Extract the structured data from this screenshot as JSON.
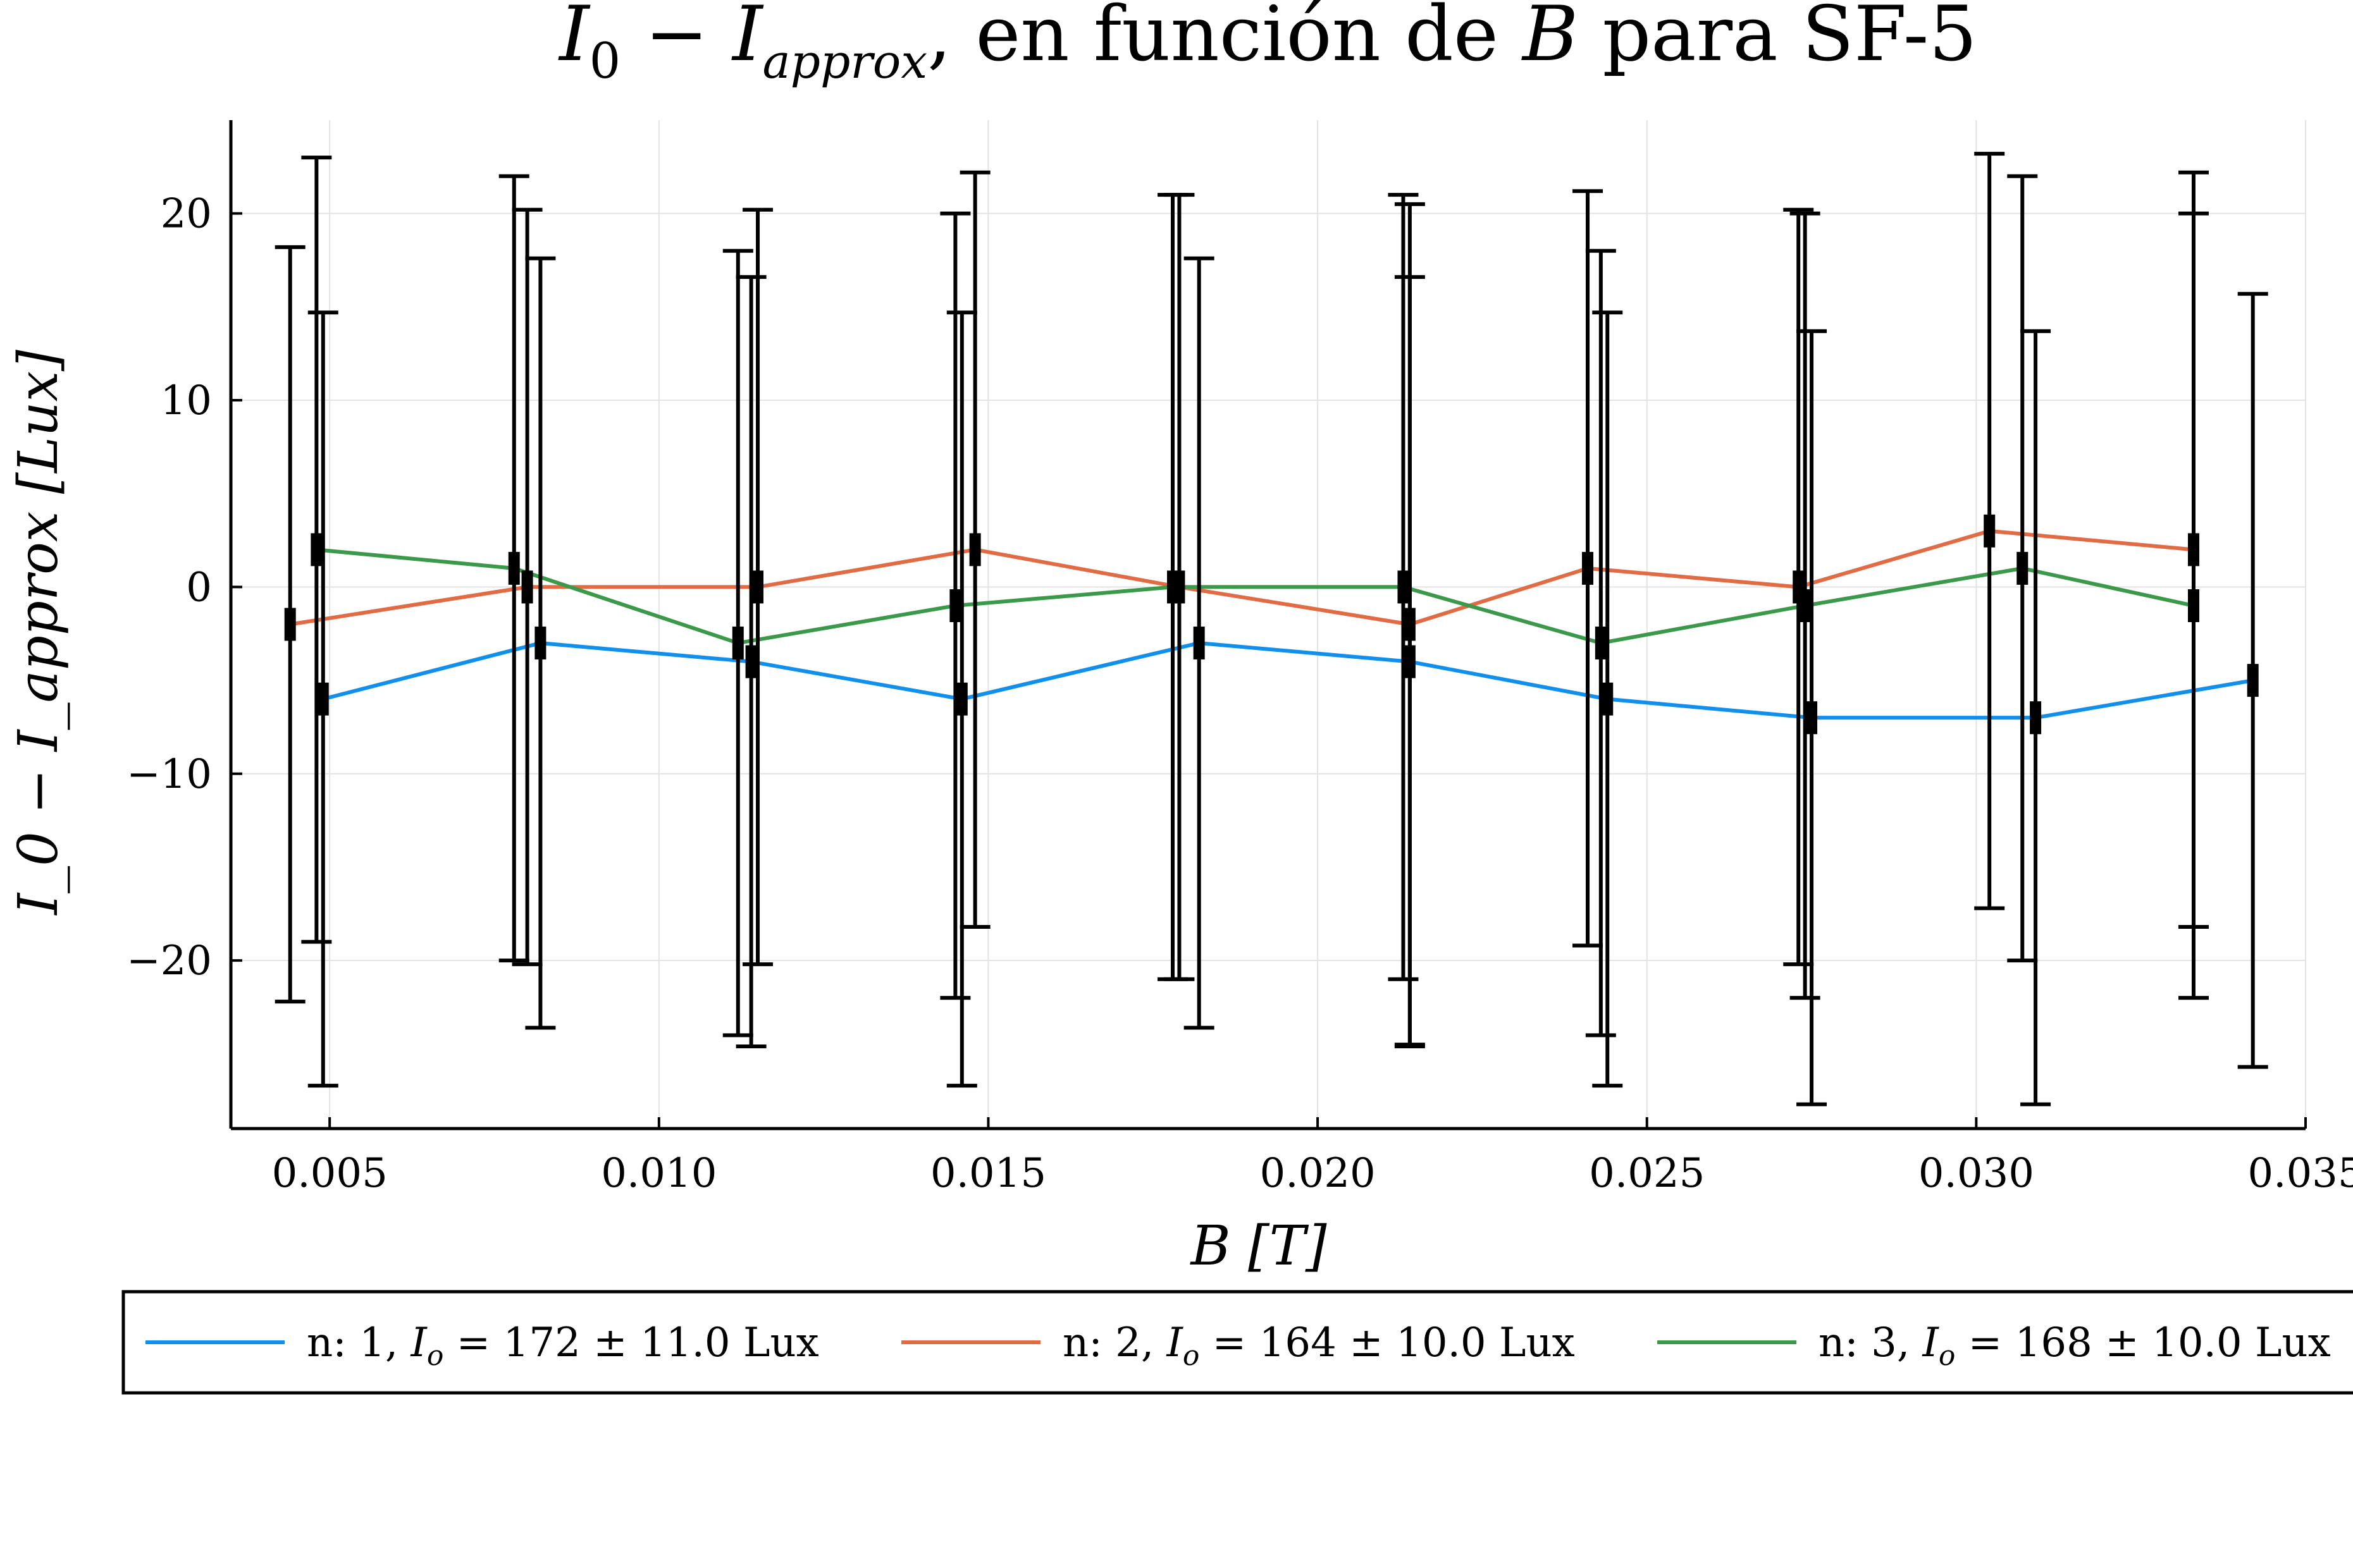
{
  "chart_data": {
    "type": "line",
    "title": "I_0 − I_approx, en función de B para SF-5",
    "title_parts": {
      "main_a": "I",
      "sub_a": "0",
      "minus": " − ",
      "main_b": "I",
      "sub_b": "approx",
      "rest1": ", en función de ",
      "var": "B",
      "rest2": " para SF-5"
    },
    "xlabel": "B [T]",
    "ylabel": "I_0 − I_approx [Lux]",
    "xlim": [
      0.0035,
      0.035
    ],
    "ylim": [
      -29,
      25
    ],
    "xticks": [
      0.005,
      0.01,
      0.015,
      0.02,
      0.025,
      0.03,
      0.035
    ],
    "xtick_labels": [
      "0.005",
      "0.010",
      "0.015",
      "0.020",
      "0.025",
      "0.030",
      "0.035"
    ],
    "yticks": [
      -20,
      -10,
      0,
      10,
      20
    ],
    "ytick_labels": [
      "−20",
      "−10",
      "0",
      "10",
      "20"
    ],
    "grid": true,
    "legend_position": "bottom",
    "series": [
      {
        "name": "n: 1,  I_o = 172 ± 11.0 Lux",
        "label_parts": {
          "n": "n: 1,",
          "io": "I",
          "io_sub": "o",
          "eq": "= 172 ± 11.0 Lux"
        },
        "color": "#0f90ee",
        "x": [
          0.0049,
          0.0082,
          0.0114,
          0.0146,
          0.0182,
          0.0214,
          0.0244,
          0.0275,
          0.0309,
          0.0342
        ],
        "y": [
          -6,
          -3,
          -4,
          -6,
          -3,
          -4,
          -6,
          -7,
          -7,
          -5
        ],
        "err": [
          20.7,
          20.6,
          20.6,
          20.7,
          20.6,
          20.6,
          20.7,
          20.7,
          20.7,
          20.7
        ]
      },
      {
        "name": "n: 2,  I_o = 164 ± 10.0 Lux",
        "label_parts": {
          "n": "n: 2,",
          "io": "I",
          "io_sub": "o",
          "eq": "= 164 ± 10.0 Lux"
        },
        "color": "#e26b43",
        "x": [
          0.0044,
          0.008,
          0.0115,
          0.0148,
          0.0179,
          0.0214,
          0.0241,
          0.0273,
          0.0302,
          0.0333
        ],
        "y": [
          -2,
          0,
          0,
          2,
          0,
          -2,
          1,
          0,
          3,
          2
        ],
        "err": [
          20.2,
          20.2,
          20.2,
          20.2,
          21,
          22.5,
          20.2,
          20.2,
          20.2,
          20.2
        ]
      },
      {
        "name": "n: 3,  I_o = 168 ± 10.0 Lux",
        "label_parts": {
          "n": "n: 3,",
          "io": "I",
          "io_sub": "o",
          "eq": "= 168 ± 10.0 Lux"
        },
        "color": "#3a9a4a",
        "x": [
          0.0048,
          0.0078,
          0.0112,
          0.0145,
          0.0178,
          0.0213,
          0.0243,
          0.0274,
          0.0307,
          0.0333
        ],
        "y": [
          2,
          1,
          -3,
          -1,
          0,
          0,
          -3,
          -1,
          1,
          -1
        ],
        "err": [
          21,
          21,
          21,
          21,
          21,
          21,
          21,
          21,
          21,
          21
        ]
      }
    ]
  }
}
